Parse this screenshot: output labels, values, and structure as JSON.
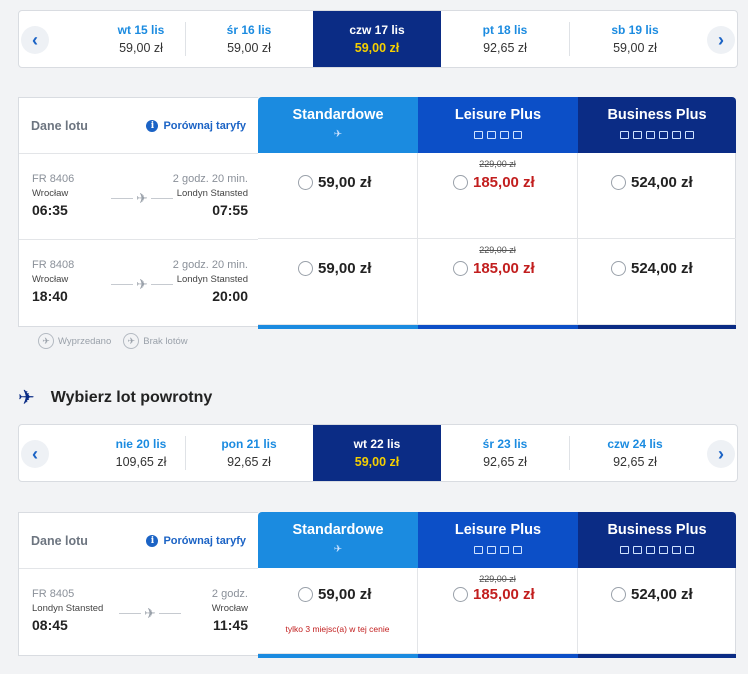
{
  "outbound": {
    "dates": [
      {
        "label": "wt 15 lis",
        "price": "59,00 zł",
        "active": false
      },
      {
        "label": "śr 16 lis",
        "price": "59,00 zł",
        "active": false
      },
      {
        "label": "czw 17 lis",
        "price": "59,00 zł",
        "active": true
      },
      {
        "label": "pt 18 lis",
        "price": "92,65 zł",
        "active": false
      },
      {
        "label": "sb 19 lis",
        "price": "59,00 zł",
        "active": false
      }
    ],
    "panel": {
      "header_label": "Dane lotu",
      "compare_label": "Porównaj taryfy"
    },
    "flights": [
      {
        "number": "FR 8406",
        "duration": "2 godz. 20 min.",
        "origin": "Wrocław",
        "destination": "Londyn Stansted",
        "depart": "06:35",
        "arrive": "07:55",
        "standard": "59,00 zł",
        "leisure_old": "229,00 zł",
        "leisure": "185,00 zł",
        "business": "524,00 zł",
        "note": ""
      },
      {
        "number": "FR 8408",
        "duration": "2 godz. 20 min.",
        "origin": "Wrocław",
        "destination": "Londyn Stansted",
        "depart": "18:40",
        "arrive": "20:00",
        "standard": "59,00 zł",
        "leisure_old": "229,00 zł",
        "leisure": "185,00 zł",
        "business": "524,00 zł",
        "note": ""
      }
    ]
  },
  "fares": {
    "standard": "Standardowe",
    "leisure": "Leisure Plus",
    "business": "Business Plus"
  },
  "legend": {
    "sold_out": "Wyprzedano",
    "no_flights": "Brak lotów"
  },
  "return_section": {
    "title": "Wybierz lot powrotny"
  },
  "inbound": {
    "dates": [
      {
        "label": "nie 20 lis",
        "price": "109,65 zł",
        "active": false
      },
      {
        "label": "pon 21 lis",
        "price": "92,65 zł",
        "active": false
      },
      {
        "label": "wt 22 lis",
        "price": "59,00 zł",
        "active": true
      },
      {
        "label": "śr 23 lis",
        "price": "92,65 zł",
        "active": false
      },
      {
        "label": "czw 24 lis",
        "price": "92,65 zł",
        "active": false
      }
    ],
    "panel": {
      "header_label": "Dane lotu",
      "compare_label": "Porównaj taryfy"
    },
    "flights": [
      {
        "number": "FR 8405",
        "duration": "2 godz.",
        "origin": "Londyn Stansted",
        "destination": "Wrocław",
        "depart": "08:45",
        "arrive": "11:45",
        "standard": "59,00 zł",
        "leisure_old": "229,00 zł",
        "leisure": "185,00 zł",
        "business": "524,00 zł",
        "note": "tylko 3 miejsc(a) w tej cenie"
      }
    ]
  },
  "icons": {
    "prev": "chevron-left-icon",
    "next": "chevron-right-icon",
    "plane": "plane-icon",
    "info": "info-icon"
  },
  "colors": {
    "standard": "#1b8be0",
    "leisure": "#0c4fc7",
    "business": "#0b2c85",
    "active_price": "#f5d000",
    "discount_price": "#c21e1e"
  }
}
